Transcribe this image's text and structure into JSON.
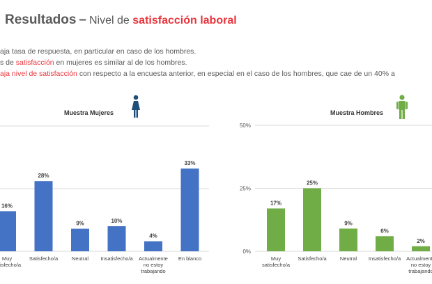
{
  "header": {
    "title_main": "Resultados",
    "title_dash": "–",
    "title_sub": "Nivel de",
    "title_highlight": "satisfacción laboral"
  },
  "bullets": [
    {
      "parts": [
        {
          "text": "aja tasa de respuesta, en particular en caso de los hombres.",
          "red": false
        }
      ]
    },
    {
      "parts": [
        {
          "text": "s de ",
          "red": false
        },
        {
          "text": "satisfacción",
          "red": true
        },
        {
          "text": " en mujeres es similar al de los hombres.",
          "red": false
        }
      ]
    },
    {
      "parts": [
        {
          "text": "aja nivel de satisfacción",
          "red": true
        },
        {
          "text": " con respecto a la encuesta anterior, en especial en el caso de los hombres, que cae de un 40% a",
          "red": false
        }
      ]
    }
  ],
  "colors": {
    "women": "#4472c4",
    "men": "#70ad47",
    "highlight": "#e8353c",
    "women_icon": "#1f4e79",
    "men_icon": "#70ad47"
  },
  "icons": {
    "women": "woman-figure-icon",
    "men": "man-figure-icon"
  },
  "chart_data": [
    {
      "type": "bar",
      "title": "Muestra Mujeres",
      "categories": [
        "Muy satisfecho/a",
        "Satisfecho/a",
        "Neutral",
        "Insatisfecho/a",
        "Actualmente no estoy trabajando",
        "En blanco"
      ],
      "values": [
        16,
        28,
        9,
        10,
        4,
        33
      ],
      "value_labels": [
        "16%",
        "28%",
        "9%",
        "10%",
        "4%",
        "33%"
      ],
      "ylim": [
        0,
        50
      ],
      "yticks": [],
      "grid": false
    },
    {
      "type": "bar",
      "title": "Muestra Hombres",
      "categories": [
        "Muy satisfecho/a",
        "Satisfecho/a",
        "Neutral",
        "Insatisfecho/a",
        "Actualmente no estoy trabajando"
      ],
      "values": [
        17,
        25,
        9,
        6,
        2
      ],
      "value_labels": [
        "17%",
        "25%",
        "9%",
        "6%",
        "2%"
      ],
      "ylim": [
        0,
        50
      ],
      "yticks": [
        "0%",
        "25%",
        "50%"
      ],
      "grid": true
    }
  ]
}
